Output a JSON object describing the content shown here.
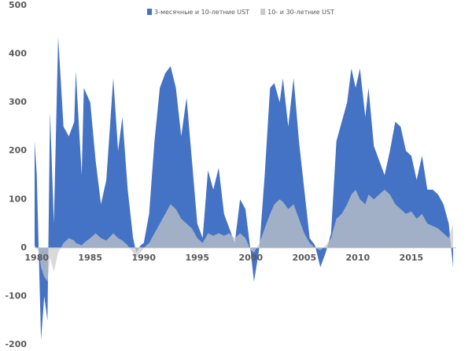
{
  "chart_data": {
    "type": "area",
    "x": [
      1979.8,
      1980.0,
      1980.2,
      1980.4,
      1980.7,
      1981.0,
      1981.24,
      1981.6,
      1982.0,
      1982.5,
      1983.0,
      1983.5,
      1983.65,
      1984.2,
      1984.4,
      1985.0,
      1985.5,
      1986.0,
      1986.5,
      1987.15,
      1987.6,
      1988.0,
      1988.5,
      1989.0,
      1989.3,
      1989.7,
      1990.0,
      1990.5,
      1991.0,
      1991.5,
      1992.0,
      1992.5,
      1993.0,
      1993.5,
      1994.0,
      1994.5,
      1995.0,
      1995.5,
      1996.0,
      1996.5,
      1997.0,
      1997.5,
      1998.0,
      1998.5,
      1999.0,
      1999.5,
      2000.0,
      2000.3,
      2000.8,
      2001.3,
      2001.8,
      2002.2,
      2002.7,
      2003.0,
      2003.5,
      2004.0,
      2004.5,
      2005.0,
      2005.5,
      2006.0,
      2006.5,
      2007.0,
      2007.5,
      2008.0,
      2008.5,
      2009.0,
      2009.4,
      2009.8,
      2010.2,
      2010.7,
      2011.0,
      2011.5,
      2012.0,
      2012.5,
      2013.0,
      2013.5,
      2014.0,
      2014.5,
      2015.0,
      2015.5,
      2016.0,
      2016.5,
      2017.0,
      2017.5,
      2018.0,
      2018.5,
      2018.9
    ],
    "series": [
      {
        "name": "3-месячные и 10-летние UST",
        "color": "#4472c4",
        "values": [
          220,
          150,
          -20,
          -190,
          -100,
          -150,
          280,
          50,
          435,
          250,
          230,
          260,
          365,
          150,
          330,
          300,
          180,
          90,
          140,
          350,
          200,
          270,
          120,
          20,
          -10,
          5,
          10,
          70,
          220,
          330,
          360,
          375,
          330,
          230,
          310,
          180,
          50,
          20,
          160,
          120,
          165,
          70,
          40,
          10,
          100,
          80,
          -10,
          -70,
          0,
          150,
          330,
          340,
          300,
          350,
          250,
          350,
          220,
          120,
          20,
          5,
          -40,
          -10,
          30,
          220,
          260,
          300,
          370,
          330,
          370,
          270,
          330,
          210,
          180,
          150,
          200,
          260,
          250,
          200,
          190,
          140,
          190,
          120,
          120,
          110,
          90,
          50,
          -40
        ]
      },
      {
        "name": "10- и 30-летние UST",
        "color": "#c9c9c9",
        "values": [
          5,
          0,
          -10,
          -40,
          -60,
          -70,
          -20,
          -50,
          -10,
          10,
          20,
          15,
          10,
          5,
          10,
          20,
          30,
          20,
          15,
          30,
          20,
          15,
          5,
          -10,
          -20,
          -10,
          0,
          10,
          30,
          50,
          70,
          90,
          80,
          60,
          50,
          40,
          20,
          10,
          30,
          25,
          30,
          25,
          30,
          20,
          30,
          20,
          -5,
          -10,
          10,
          40,
          70,
          90,
          100,
          95,
          80,
          90,
          60,
          30,
          10,
          0,
          -5,
          5,
          20,
          60,
          70,
          90,
          110,
          120,
          100,
          90,
          110,
          100,
          110,
          120,
          110,
          90,
          80,
          70,
          75,
          60,
          70,
          50,
          45,
          40,
          30,
          20,
          50
        ]
      }
    ],
    "xlim": [
      1979.8,
      2019.2
    ],
    "xticks": [
      1980,
      1985,
      1990,
      1995,
      2000,
      2005,
      2010,
      2015
    ],
    "ylim": [
      -200,
      500
    ],
    "yticks": [
      -200,
      -100,
      0,
      100,
      200,
      300,
      400,
      500
    ],
    "legend": "top"
  }
}
